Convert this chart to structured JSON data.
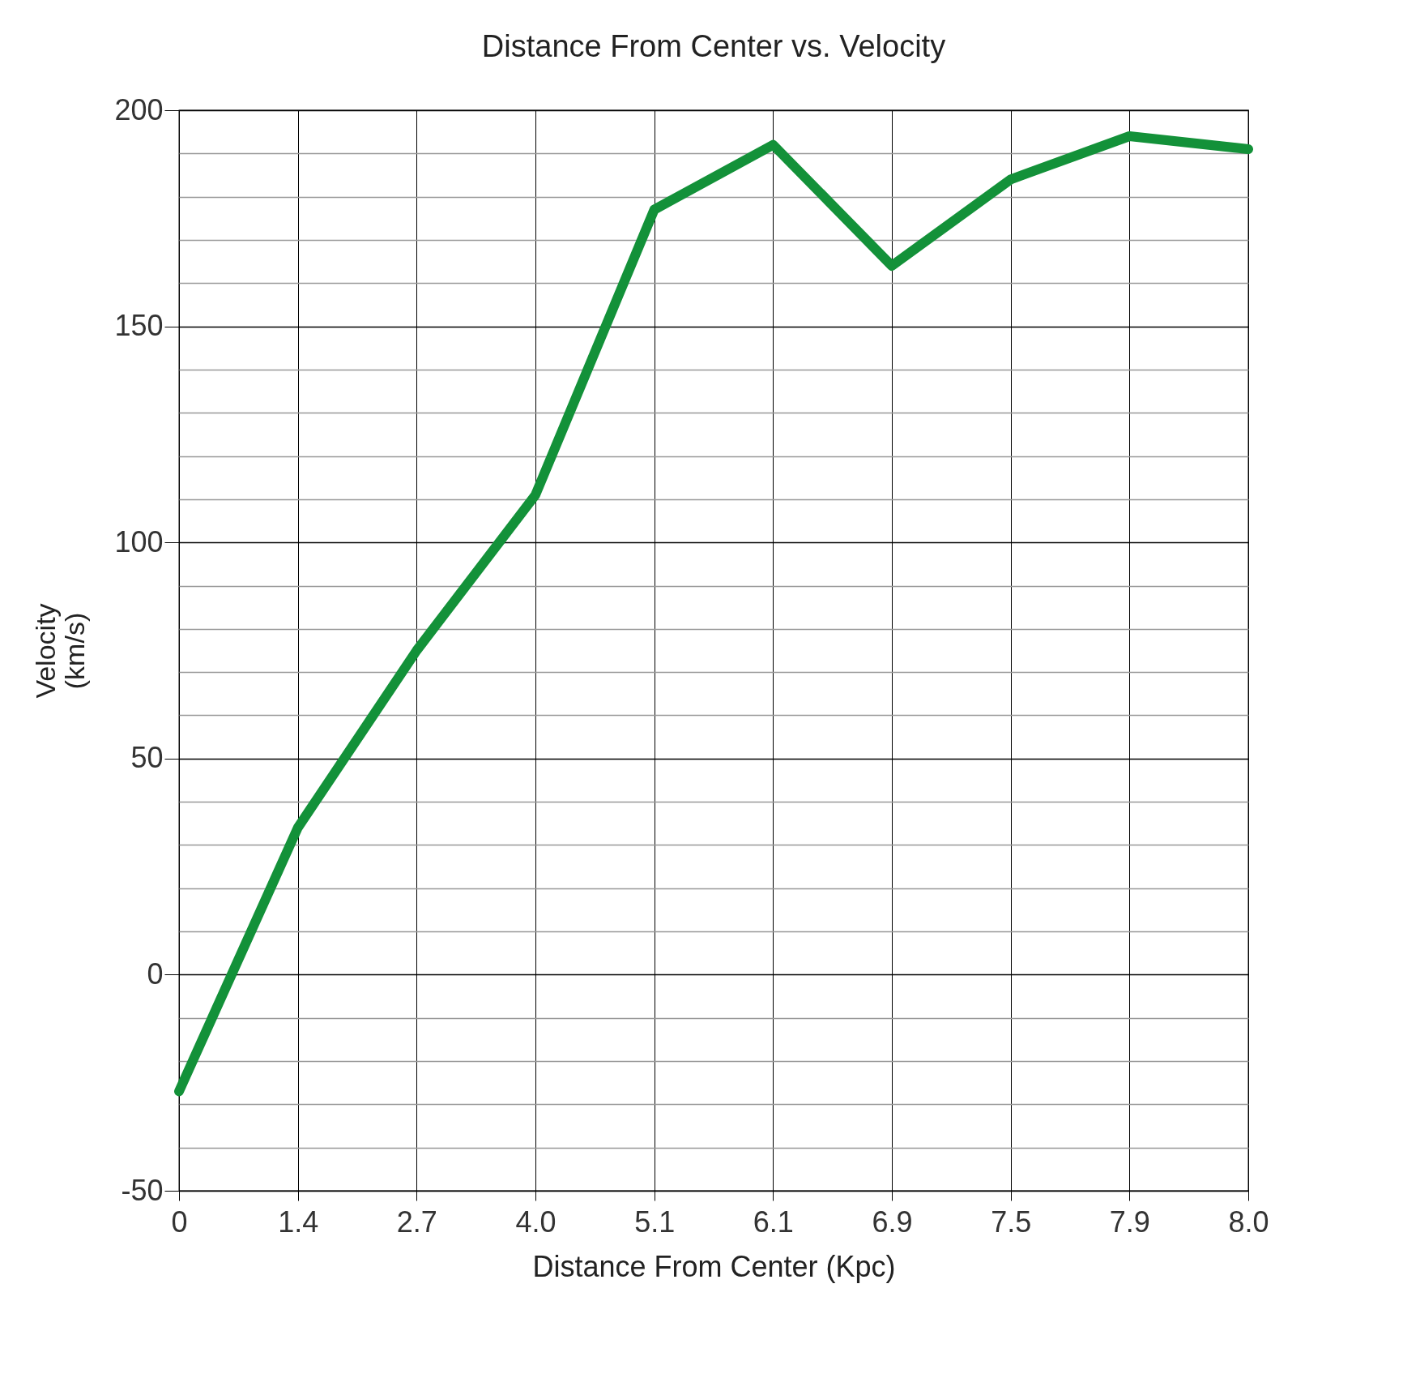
{
  "chart_data": {
    "type": "line",
    "title": "Distance From Center vs. Velocity",
    "xlabel": "Distance From Center (Kpc)",
    "ylabel": "Velocity (km/s)",
    "categories": [
      "0",
      "1.4",
      "2.7",
      "4.0",
      "5.1",
      "6.1",
      "6.9",
      "7.5",
      "7.9",
      "8.0"
    ],
    "series": [
      {
        "color": "#139139",
        "values": [
          -27,
          34,
          75,
          111,
          177,
          192,
          164,
          184,
          194,
          191
        ]
      }
    ],
    "ylim": [
      -50,
      200
    ],
    "yticks": [
      -50,
      {
        "value": -40,
        "label": null
      },
      {
        "value": -30,
        "label": null
      },
      {
        "value": -20,
        "label": null
      },
      {
        "value": -10,
        "label": null
      },
      0,
      {
        "value": 10,
        "label": null
      },
      {
        "value": 20,
        "label": null
      },
      {
        "value": 30,
        "label": null
      },
      {
        "value": 40,
        "label": null
      },
      50,
      {
        "value": 60,
        "label": null
      },
      {
        "value": 70,
        "label": null
      },
      {
        "value": 80,
        "label": null
      },
      {
        "value": 90,
        "label": null
      },
      100,
      {
        "value": 110,
        "label": null
      },
      {
        "value": 120,
        "label": null
      },
      {
        "value": 130,
        "label": null
      },
      {
        "value": 140,
        "label": null
      },
      150,
      {
        "value": 160,
        "label": null
      },
      {
        "value": 170,
        "label": null
      },
      {
        "value": 180,
        "label": null
      },
      {
        "value": 190,
        "label": null
      },
      200
    ],
    "grid": true,
    "marker": "none",
    "line_style": "solid"
  }
}
